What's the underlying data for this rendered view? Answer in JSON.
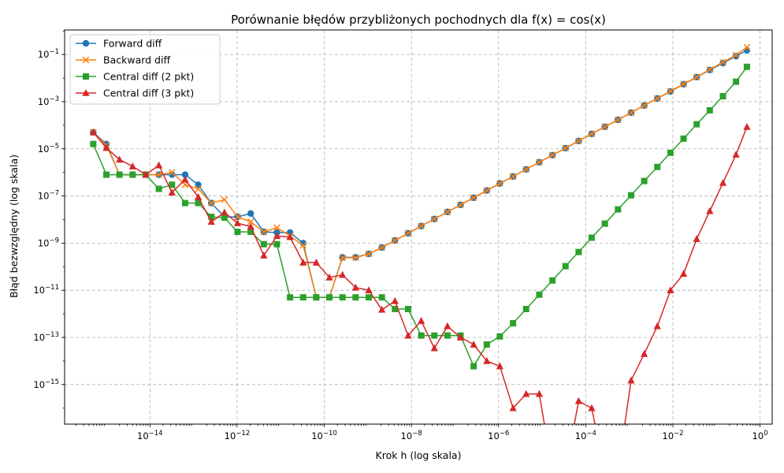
{
  "chart_data": {
    "type": "line",
    "title": "Porównanie błędów przybliżonych pochodnych dla f(x) = cos(x)",
    "xlabel": "Krok h (log skala)",
    "ylabel": "Błąd bezwzględny (log skala)",
    "xscale": "log",
    "yscale": "log",
    "xlim": [
      1.1e-16,
      1.9
    ],
    "ylim": [
      2.1e-17,
      1.1
    ],
    "x_ticks": [
      {
        "value": 1e-14,
        "base": "10",
        "exp": "−14"
      },
      {
        "value": 1e-12,
        "base": "10",
        "exp": "−12"
      },
      {
        "value": 1e-10,
        "base": "10",
        "exp": "−10"
      },
      {
        "value": 1e-08,
        "base": "10",
        "exp": "−8"
      },
      {
        "value": 1e-06,
        "base": "10",
        "exp": "−6"
      },
      {
        "value": 0.0001,
        "base": "10",
        "exp": "−4"
      },
      {
        "value": 0.01,
        "base": "10",
        "exp": "−2"
      },
      {
        "value": 1,
        "base": "10",
        "exp": "0"
      }
    ],
    "y_ticks": [
      {
        "value": 1e-15,
        "base": "10",
        "exp": "−15"
      },
      {
        "value": 1e-13,
        "base": "10",
        "exp": "−13"
      },
      {
        "value": 1e-11,
        "base": "10",
        "exp": "−11"
      },
      {
        "value": 1e-09,
        "base": "10",
        "exp": "−9"
      },
      {
        "value": 1e-07,
        "base": "10",
        "exp": "−7"
      },
      {
        "value": 1e-05,
        "base": "10",
        "exp": "−5"
      },
      {
        "value": 0.001,
        "base": "10",
        "exp": "−3"
      },
      {
        "value": 0.1,
        "base": "10",
        "exp": "−1"
      }
    ],
    "grid": true,
    "legend_position": "top-left",
    "x": [
      5e-16,
      1e-15,
      2e-15,
      4e-15,
      8e-15,
      1.6e-14,
      3.2e-14,
      6.4e-14,
      1.28e-13,
      2.56e-13,
      5.12e-13,
      1.02e-12,
      2.05e-12,
      4.1e-12,
      8.19e-12,
      1.64e-11,
      3.28e-11,
      6.55e-11,
      1.31e-10,
      2.62e-10,
      5.24e-10,
      1.05e-09,
      2.1e-09,
      4.19e-09,
      8.39e-09,
      1.68e-08,
      3.36e-08,
      6.71e-08,
      1.34e-07,
      2.68e-07,
      5.37e-07,
      1.07e-06,
      2.15e-06,
      4.29e-06,
      8.59e-06,
      1.72e-05,
      3.44e-05,
      6.87e-05,
      0.000137,
      0.000275,
      0.00055,
      0.0011,
      0.0022,
      0.0044,
      0.0088,
      0.0176,
      0.0352,
      0.0703,
      0.141,
      0.281,
      0.5
    ],
    "series": [
      {
        "name": "Forward diff",
        "color": "#1f77b4",
        "marker": "circle",
        "values": [
          5e-05,
          1.6e-05,
          8e-07,
          8e-07,
          8e-07,
          8e-07,
          8e-07,
          8e-07,
          3e-07,
          5e-08,
          1.3e-08,
          1.3e-08,
          1.8e-08,
          3e-09,
          2.8e-09,
          2.8e-09,
          1e-09,
          5e-12,
          5e-12,
          2.5e-10,
          2.5e-10,
          3.5e-10,
          6.5e-10,
          1.3e-09,
          2.6e-09,
          5.3e-09,
          1.05e-08,
          2.1e-08,
          4.2e-08,
          8.4e-08,
          1.7e-07,
          3.4e-07,
          6.7e-07,
          1.35e-06,
          2.7e-06,
          5.4e-06,
          1.07e-05,
          2.15e-05,
          4.3e-05,
          8.6e-05,
          0.00017,
          0.00034,
          0.00069,
          0.00137,
          0.0027,
          0.0055,
          0.011,
          0.022,
          0.043,
          0.085,
          0.15
        ]
      },
      {
        "name": "Backward diff",
        "color": "#ff7f0e",
        "marker": "x",
        "values": [
          5e-05,
          1.4e-05,
          8e-07,
          8e-07,
          8e-07,
          8e-07,
          1e-06,
          3e-07,
          2e-07,
          5e-08,
          7e-08,
          1.3e-08,
          8e-09,
          3e-09,
          4.5e-09,
          2e-09,
          8e-10,
          5e-12,
          5e-12,
          2.4e-10,
          2.4e-10,
          3.5e-10,
          6.5e-10,
          1.3e-09,
          2.6e-09,
          5.3e-09,
          1.05e-08,
          2.1e-08,
          4.2e-08,
          8.4e-08,
          1.7e-07,
          3.4e-07,
          6.7e-07,
          1.35e-06,
          2.7e-06,
          5.4e-06,
          1.07e-05,
          2.15e-05,
          4.3e-05,
          8.6e-05,
          0.00017,
          0.00034,
          0.00069,
          0.00137,
          0.0028,
          0.0056,
          0.011,
          0.023,
          0.047,
          0.095,
          0.2
        ]
      },
      {
        "name": "Central diff (2 pkt)",
        "color": "#2ca02c",
        "marker": "square",
        "values": [
          1.6e-05,
          8e-07,
          8e-07,
          8e-07,
          8e-07,
          2e-07,
          3e-07,
          5e-08,
          5e-08,
          1.3e-08,
          1.2e-08,
          3e-09,
          3e-09,
          9e-10,
          9e-10,
          5e-12,
          5e-12,
          5e-12,
          5e-12,
          5e-12,
          5e-12,
          5e-12,
          5e-12,
          1.6e-12,
          1.6e-12,
          1.2e-13,
          1.2e-13,
          1.2e-13,
          1.2e-13,
          6e-15,
          5e-14,
          1.1e-13,
          4e-13,
          1.6e-12,
          6.5e-12,
          2.6e-11,
          1.05e-10,
          4.2e-10,
          1.7e-09,
          6.7e-09,
          2.7e-08,
          1.07e-07,
          4.3e-07,
          1.7e-06,
          6.8e-06,
          2.7e-05,
          0.00011,
          0.00043,
          0.0017,
          0.007,
          0.03
        ]
      },
      {
        "name": "Central diff (3 pkt)",
        "color": "#d62728",
        "marker": "triangle",
        "values": [
          5e-05,
          1.1e-05,
          3.5e-06,
          1.8e-06,
          8e-07,
          2e-06,
          1.4e-07,
          5e-07,
          9e-08,
          8e-09,
          2e-08,
          7e-09,
          5e-09,
          3e-10,
          2e-09,
          1.8e-09,
          1.5e-10,
          1.5e-10,
          3.5e-11,
          4.5e-11,
          1.3e-11,
          1e-11,
          1.5e-12,
          3.5e-12,
          1.2e-13,
          5e-13,
          3.5e-14,
          3e-13,
          1e-13,
          5e-14,
          1e-14,
          6e-15,
          1e-16,
          4e-16,
          4e-16,
          0,
          0,
          2e-16,
          1e-16,
          0,
          0,
          1.5e-15,
          2e-14,
          3e-13,
          1e-11,
          5e-11,
          1.5e-09,
          2.3e-08,
          3.6e-07,
          5.7e-06,
          8.5e-05
        ]
      }
    ]
  }
}
